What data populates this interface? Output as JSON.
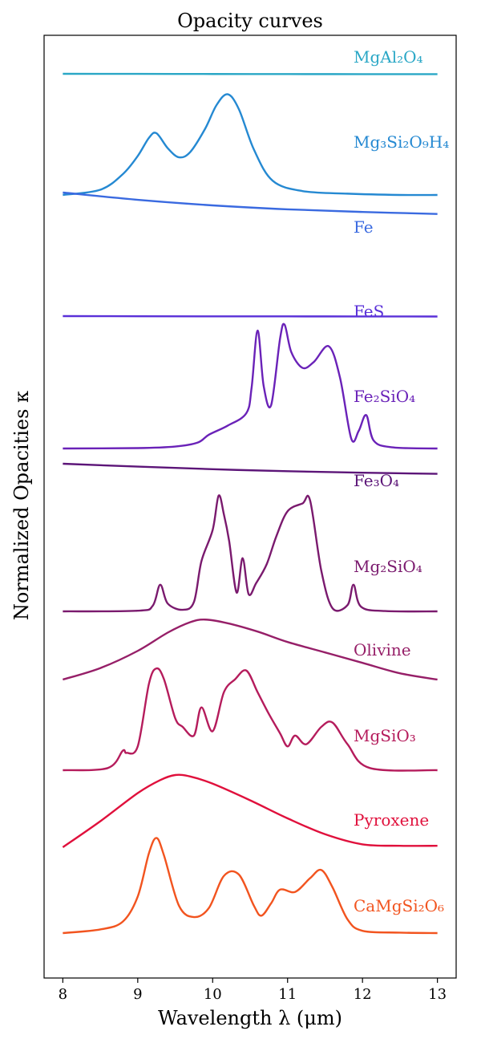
{
  "chart_data": {
    "type": "line",
    "title": "Opacity curves",
    "xlabel": "Wavelength λ (μm)",
    "ylabel": "Normalized Opacities κ",
    "xlim": [
      7.75,
      13.25
    ],
    "x_ticks": [
      "8",
      "9",
      "10",
      "11",
      "12",
      "13"
    ],
    "y_ticks_shown": false,
    "grid": false,
    "legend": "inline labels at right end of each curve",
    "series": [
      {
        "name": "MgAl₂O₄",
        "color": "#2aa7c6",
        "x": [
          8,
          9,
          10,
          11,
          12,
          13
        ],
        "y": [
          1.0,
          0.98,
          0.95,
          0.93,
          0.92,
          0.91
        ]
      },
      {
        "name": "Mg₃Si₂O₉H₄",
        "color": "#2589d2",
        "x": [
          8,
          8.5,
          8.8,
          9.0,
          9.15,
          9.25,
          9.4,
          9.55,
          9.7,
          9.9,
          10.05,
          10.2,
          10.35,
          10.55,
          10.8,
          11.2,
          11.8,
          12.5,
          13
        ],
        "y": [
          0.0,
          0.08,
          0.32,
          0.6,
          0.88,
          0.95,
          0.72,
          0.58,
          0.66,
          1.02,
          1.38,
          1.55,
          1.32,
          0.7,
          0.22,
          0.06,
          0.02,
          0.0,
          0.0
        ]
      },
      {
        "name": "Fe",
        "color": "#3a6ae0",
        "x": [
          8,
          9,
          10,
          11,
          12,
          13
        ],
        "y": [
          1.0,
          0.78,
          0.61,
          0.49,
          0.41,
          0.35
        ]
      },
      {
        "name": "FeS",
        "color": "#5a30d8",
        "x": [
          8,
          9,
          10,
          11,
          12,
          13
        ],
        "y": [
          1.0,
          0.98,
          0.96,
          0.95,
          0.94,
          0.93
        ]
      },
      {
        "name": "Fe₂SiO₄",
        "color": "#6a22b8",
        "x": [
          8,
          9.0,
          9.5,
          9.8,
          9.95,
          10.2,
          10.45,
          10.52,
          10.6,
          10.68,
          10.78,
          10.9,
          10.96,
          11.05,
          11.2,
          11.35,
          11.55,
          11.7,
          11.85,
          11.95,
          12.05,
          12.15,
          12.4,
          13
        ],
        "y": [
          0.0,
          0.01,
          0.05,
          0.15,
          0.35,
          0.58,
          0.9,
          1.55,
          3.0,
          1.6,
          1.1,
          2.8,
          3.15,
          2.45,
          2.05,
          2.2,
          2.6,
          1.8,
          0.25,
          0.45,
          0.85,
          0.2,
          0.03,
          0.0
        ]
      },
      {
        "name": "Fe₃O₄",
        "color": "#5c1578",
        "x": [
          8,
          9,
          10,
          11,
          12,
          13
        ],
        "y": [
          1.0,
          0.8,
          0.62,
          0.48,
          0.38,
          0.3
        ]
      },
      {
        "name": "Mg₂SiO₄",
        "color": "#7a1a6e",
        "x": [
          8,
          9.0,
          9.2,
          9.3,
          9.4,
          9.6,
          9.75,
          9.85,
          10.0,
          10.08,
          10.15,
          10.22,
          10.32,
          10.4,
          10.48,
          10.58,
          10.72,
          10.85,
          11.0,
          11.2,
          11.3,
          11.45,
          11.6,
          11.8,
          11.88,
          11.98,
          12.3,
          13
        ],
        "y": [
          0.0,
          0.02,
          0.18,
          0.85,
          0.25,
          0.05,
          0.3,
          1.6,
          2.6,
          3.7,
          3.1,
          2.25,
          0.6,
          1.7,
          0.55,
          0.9,
          1.5,
          2.4,
          3.2,
          3.45,
          3.55,
          1.3,
          0.1,
          0.2,
          0.85,
          0.15,
          0.01,
          0.0
        ]
      },
      {
        "name": "Olivine",
        "color": "#961f68",
        "x": [
          8,
          8.5,
          9.0,
          9.4,
          9.7,
          9.9,
          10.2,
          10.6,
          11.0,
          11.5,
          12.0,
          12.5,
          13
        ],
        "y": [
          0.0,
          0.22,
          0.55,
          0.9,
          1.1,
          1.15,
          1.08,
          0.92,
          0.72,
          0.52,
          0.32,
          0.12,
          0.0
        ]
      },
      {
        "name": "MgSiO₃",
        "color": "#b51c5c",
        "x": [
          8,
          8.6,
          8.8,
          8.85,
          9.0,
          9.15,
          9.25,
          9.35,
          9.5,
          9.6,
          9.75,
          9.85,
          10.0,
          10.15,
          10.3,
          10.45,
          10.6,
          10.75,
          10.9,
          11.0,
          11.1,
          11.25,
          11.45,
          11.6,
          11.8,
          12.1,
          13
        ],
        "y": [
          0.0,
          0.05,
          0.45,
          0.4,
          0.55,
          2.0,
          2.35,
          2.1,
          1.2,
          1.0,
          0.8,
          1.45,
          0.9,
          1.8,
          2.1,
          2.3,
          1.8,
          1.3,
          0.85,
          0.55,
          0.8,
          0.6,
          1.0,
          1.1,
          0.6,
          0.05,
          0.0
        ]
      },
      {
        "name": "Pyroxene",
        "color": "#e0103c",
        "x": [
          8,
          8.5,
          9.0,
          9.3,
          9.5,
          9.7,
          10.0,
          10.5,
          11.0,
          11.5,
          12.0,
          12.5,
          13
        ],
        "y": [
          0.0,
          0.36,
          0.75,
          0.93,
          1.0,
          0.98,
          0.88,
          0.65,
          0.4,
          0.18,
          0.04,
          0.02,
          0.02
        ]
      },
      {
        "name": "CaMgSi₂O₆",
        "color": "#f2541f",
        "x": [
          8,
          8.5,
          8.8,
          9.0,
          9.15,
          9.25,
          9.35,
          9.55,
          9.75,
          9.95,
          10.15,
          10.35,
          10.55,
          10.65,
          10.78,
          10.9,
          11.1,
          11.3,
          11.45,
          11.6,
          11.8,
          12.0,
          12.5,
          13
        ],
        "y": [
          0.0,
          0.08,
          0.25,
          0.8,
          1.75,
          2.08,
          1.7,
          0.6,
          0.35,
          0.55,
          1.25,
          1.28,
          0.6,
          0.38,
          0.65,
          0.95,
          0.9,
          1.2,
          1.38,
          1.0,
          0.3,
          0.05,
          0.01,
          0.0
        ]
      }
    ]
  }
}
